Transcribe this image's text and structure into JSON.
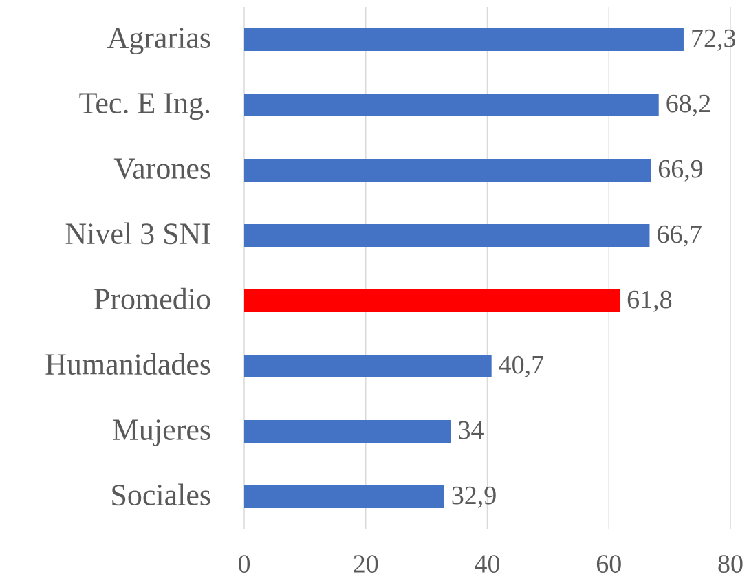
{
  "chart_data": {
    "type": "barh",
    "categories": [
      "Agrarias",
      "Tec. E Ing.",
      "Varones",
      "Nivel 3 SNI",
      "Promedio",
      "Humanidades",
      "Mujeres",
      "Sociales"
    ],
    "values": [
      72.3,
      68.2,
      66.9,
      66.7,
      61.8,
      40.7,
      34,
      32.9
    ],
    "value_labels": [
      "72,3",
      "68,2",
      "66,9",
      "66,7",
      "61,8",
      "40,7",
      "34",
      "32,9"
    ],
    "colors": [
      "#4472c4",
      "#4472c4",
      "#4472c4",
      "#4472c4",
      "#ff0000",
      "#4472c4",
      "#4472c4",
      "#4472c4"
    ],
    "xlim": [
      0,
      80
    ],
    "xticks": [
      0,
      20,
      40,
      60,
      80
    ],
    "grid": true
  }
}
